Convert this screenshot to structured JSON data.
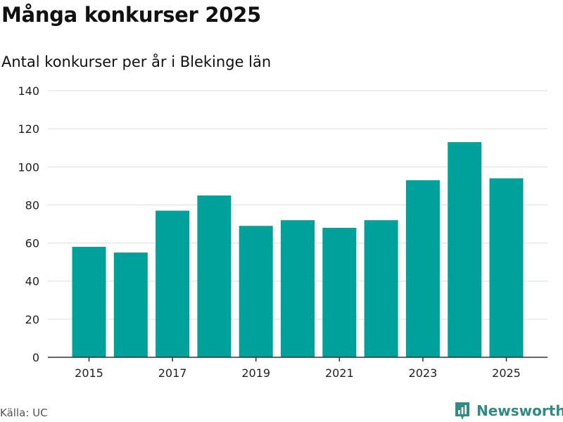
{
  "header": {
    "title": "Många konkurser 2025",
    "subtitle": "Antal konkurser per år i Blekinge län"
  },
  "footer": {
    "source": "Källa: UC",
    "brand_name": "Newsworthy",
    "brand_color": "#2f8c82"
  },
  "chart_data": {
    "type": "bar",
    "categories": [
      "2015",
      "2016",
      "2017",
      "2018",
      "2019",
      "2020",
      "2021",
      "2022",
      "2023",
      "2024",
      "2025"
    ],
    "x_tick_labels": [
      "2015",
      "2017",
      "2019",
      "2021",
      "2023",
      "2025"
    ],
    "values": [
      58,
      55,
      77,
      85,
      69,
      72,
      68,
      72,
      93,
      113,
      94
    ],
    "ylim": [
      0,
      140
    ],
    "y_ticks": [
      0,
      20,
      40,
      60,
      80,
      100,
      120,
      140
    ],
    "grid": true,
    "bar_color": "#00a19a",
    "grid_color": "#dddddd",
    "axis_color": "#333333"
  }
}
